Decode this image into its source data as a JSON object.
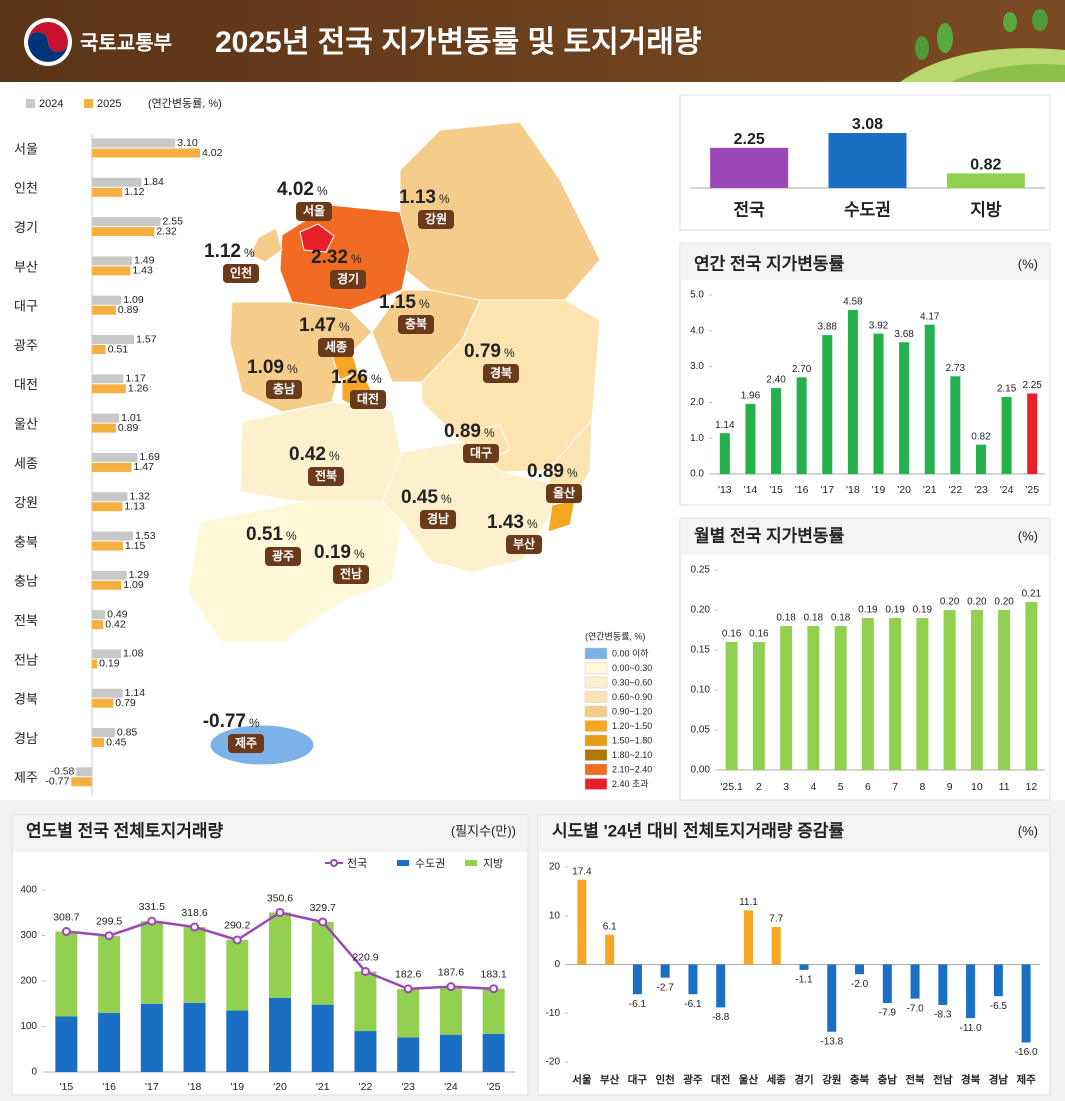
{
  "header": {
    "ministry": "국토교통부",
    "title": "2025년 전국 지가변동률 및 토지거래량"
  },
  "map": {
    "unit": "%",
    "legend_title": "(연간변동률, %)",
    "regions": [
      {
        "name": "서울",
        "value": "4.02",
        "color": "#e8202a"
      },
      {
        "name": "인천",
        "value": "1.12",
        "color": "#f5cc8a"
      },
      {
        "name": "경기",
        "value": "2.32",
        "color": "#f26b22"
      },
      {
        "name": "강원",
        "value": "1.13",
        "color": "#f5cc8a"
      },
      {
        "name": "충북",
        "value": "1.15",
        "color": "#f5cc8a"
      },
      {
        "name": "세종",
        "value": "1.47",
        "color": "#f5a623"
      },
      {
        "name": "충남",
        "value": "1.09",
        "color": "#f5cc8a"
      },
      {
        "name": "대전",
        "value": "1.26",
        "color": "#f5a623"
      },
      {
        "name": "경북",
        "value": "0.79",
        "color": "#fbe4b0"
      },
      {
        "name": "대구",
        "value": "0.89",
        "color": "#fbe4b0"
      },
      {
        "name": "전북",
        "value": "0.42",
        "color": "#fdf0cc"
      },
      {
        "name": "경남",
        "value": "0.45",
        "color": "#fdf0cc"
      },
      {
        "name": "울산",
        "value": "0.89",
        "color": "#fbe4b0"
      },
      {
        "name": "부산",
        "value": "1.43",
        "color": "#f5a623"
      },
      {
        "name": "광주",
        "value": "0.51",
        "color": "#fdf0cc"
      },
      {
        "name": "전남",
        "value": "0.19",
        "color": "#fff8d8"
      },
      {
        "name": "제주",
        "value": "-0.77",
        "color": "#7cb2e8"
      }
    ],
    "legend": [
      {
        "label": "0.00 이하",
        "color": "#7cb2e8"
      },
      {
        "label": "0.00~0.30",
        "color": "#fff8d8"
      },
      {
        "label": "0.30~0.60",
        "color": "#fdf0cc"
      },
      {
        "label": "0.60~0.90",
        "color": "#fbe4b0"
      },
      {
        "label": "0.90~1.20",
        "color": "#f5cc8a"
      },
      {
        "label": "1.20~1.50",
        "color": "#f5a623"
      },
      {
        "label": "1.50~1.80",
        "color": "#e89a10"
      },
      {
        "label": "1.80~2.10",
        "color": "#b07800"
      },
      {
        "label": "2.10~2.40",
        "color": "#f26b22"
      },
      {
        "label": "2.40 초과",
        "color": "#e8202a"
      }
    ]
  },
  "chart_data": [
    {
      "type": "hbar",
      "unit": "(연간변동률, %)",
      "categories": [
        "서울",
        "인천",
        "경기",
        "부산",
        "대구",
        "광주",
        "대전",
        "울산",
        "세종",
        "강원",
        "충북",
        "충남",
        "전북",
        "전남",
        "경북",
        "경남",
        "제주"
      ],
      "series": [
        {
          "name": "2024",
          "color": "#c8c8c8",
          "values": [
            3.1,
            1.84,
            2.55,
            1.49,
            1.09,
            1.57,
            1.17,
            1.01,
            1.69,
            1.32,
            1.53,
            1.29,
            0.49,
            1.08,
            1.14,
            0.85,
            -0.58
          ],
          "value_labels": [
            "3.10",
            "1.84",
            "2.55",
            "1.49",
            "1.09",
            "1.57",
            "1.17",
            "1.01",
            "1.69",
            "1.32",
            "1.53",
            "1.29",
            "0.49",
            "1.08",
            "1.14",
            "0.85",
            "-0.58"
          ]
        },
        {
          "name": "2025",
          "color": "#f5b041",
          "values": [
            4.02,
            1.12,
            2.32,
            1.43,
            0.89,
            0.51,
            1.26,
            0.89,
            1.47,
            1.13,
            1.15,
            1.09,
            0.42,
            0.19,
            0.79,
            0.45,
            -0.77
          ],
          "value_labels": [
            "4.02",
            "1.12",
            "2.32",
            "1.43",
            "0.89",
            "0.51",
            "1.26",
            "0.89",
            "1.47",
            "1.13",
            "1.15",
            "1.09",
            "0.42",
            "0.19",
            "0.79",
            "0.45",
            "-0.77"
          ]
        }
      ]
    },
    {
      "type": "bar",
      "categories": [
        "전국",
        "수도권",
        "지방"
      ],
      "values": [
        2.25,
        3.08,
        0.82
      ],
      "colors": [
        "#9b47b8",
        "#1a6fc4",
        "#8fd14f"
      ]
    },
    {
      "type": "bar",
      "title": "연간 전국 지가변동률",
      "unit": "(%)",
      "categories": [
        "'13",
        "'14",
        "'15",
        "'16",
        "'17",
        "'18",
        "'19",
        "'20",
        "'21",
        "'22",
        "'23",
        "'24",
        "'25"
      ],
      "values": [
        1.14,
        1.96,
        2.4,
        2.7,
        3.88,
        4.58,
        3.92,
        3.68,
        4.17,
        2.73,
        0.82,
        2.15,
        2.25
      ],
      "value_labels": [
        "1.14",
        "1.96",
        "2.40",
        "2.70",
        "3.88",
        "4.58",
        "3.92",
        "3.68",
        "4.17",
        "2.73",
        "0.82",
        "2.15",
        "2.25"
      ],
      "colors": [
        "#22b14c",
        "#22b14c",
        "#22b14c",
        "#22b14c",
        "#22b14c",
        "#22b14c",
        "#22b14c",
        "#22b14c",
        "#22b14c",
        "#22b14c",
        "#22b14c",
        "#22b14c",
        "#e8202a"
      ],
      "ylim": [
        0,
        5
      ],
      "yticks": [
        {
          "value": 0,
          "label": "0.0"
        },
        {
          "value": 1,
          "label": "1.0"
        },
        {
          "value": 2,
          "label": "2.0"
        },
        {
          "value": 3,
          "label": "3.0"
        },
        {
          "value": 4,
          "label": "4.0"
        },
        {
          "value": 5,
          "label": "5.0"
        }
      ]
    },
    {
      "type": "bar",
      "title": "월별 전국 지가변동률",
      "unit": "(%)",
      "categories": [
        "'25.1",
        "2",
        "3",
        "4",
        "5",
        "6",
        "7",
        "8",
        "9",
        "10",
        "11",
        "12"
      ],
      "values": [
        0.16,
        0.16,
        0.18,
        0.18,
        0.18,
        0.19,
        0.19,
        0.19,
        0.2,
        0.2,
        0.2,
        0.21
      ],
      "value_labels": [
        "0.16",
        "0.16",
        "0.18",
        "0.18",
        "0.18",
        "0.19",
        "0.19",
        "0.19",
        "0.20",
        "0.20",
        "0.20",
        "0.21"
      ],
      "color": "#92d050",
      "ylim": [
        0,
        0.25
      ],
      "yticks": [
        {
          "value": 0,
          "label": "0.00"
        },
        {
          "value": 0.05,
          "label": "0.05"
        },
        {
          "value": 0.1,
          "label": "0.10"
        },
        {
          "value": 0.15,
          "label": "0.15"
        },
        {
          "value": 0.2,
          "label": "0.20"
        },
        {
          "value": 0.25,
          "label": "0.25"
        }
      ]
    },
    {
      "type": "combo",
      "title": "연도별 전국 전체토지거래량",
      "unit": "(필지수(만))",
      "categories": [
        "'15",
        "'16",
        "'17",
        "'18",
        "'19",
        "'20",
        "'21",
        "'22",
        "'23",
        "'24",
        "'25"
      ],
      "series": [
        {
          "name": "전국",
          "kind": "line",
          "color": "#9b47b8",
          "values": [
            308.7,
            299.5,
            331.5,
            318.6,
            290.2,
            350.6,
            329.7,
            220.9,
            182.6,
            187.6,
            183.1
          ]
        },
        {
          "name": "수도권",
          "kind": "bar",
          "color": "#1a6fc4",
          "values": [
            122,
            130,
            150,
            152,
            135,
            163,
            148,
            90,
            76,
            82,
            84
          ]
        },
        {
          "name": "지방",
          "kind": "bar",
          "color": "#92d050",
          "values": [
            186.7,
            169.5,
            181.5,
            166.6,
            155.2,
            187.6,
            181.7,
            130.9,
            106.6,
            105.6,
            99.1
          ]
        }
      ],
      "ylim": [
        0,
        400
      ],
      "yticks": [
        0,
        100,
        200,
        300,
        400
      ]
    },
    {
      "type": "bar",
      "title": "시도별 '24년 대비 전체토지거래량 증감률",
      "unit": "(%)",
      "categories": [
        "서울",
        "부산",
        "대구",
        "인천",
        "광주",
        "대전",
        "울산",
        "세종",
        "경기",
        "강원",
        "충북",
        "충남",
        "전북",
        "전남",
        "경북",
        "경남",
        "제주"
      ],
      "values": [
        17.4,
        6.1,
        -6.1,
        -2.7,
        -6.1,
        -8.8,
        11.1,
        7.7,
        -1.1,
        -13.8,
        -2.0,
        -7.9,
        -7.0,
        -8.3,
        -11.0,
        -6.5,
        -16.0
      ],
      "value_labels": [
        "17.4",
        "6.1",
        "-6.1",
        "-2.7",
        "-6.1",
        "-8.8",
        "11.1",
        "7.7",
        "-1.1",
        "-13.8",
        "-2.0",
        "-7.9",
        "-7.0",
        "-8.3",
        "-11.0",
        "-6.5",
        "-16.0"
      ],
      "colors": [
        "#f5a623",
        "#f5a623",
        "#1a6fc4",
        "#1a6fc4",
        "#1a6fc4",
        "#1a6fc4",
        "#f5a623",
        "#f5a623",
        "#1a6fc4",
        "#1a6fc4",
        "#1a6fc4",
        "#1a6fc4",
        "#1a6fc4",
        "#1a6fc4",
        "#1a6fc4",
        "#1a6fc4",
        "#1a6fc4"
      ],
      "ylim": [
        -20,
        20
      ],
      "yticks": [
        -20,
        -10,
        0,
        10,
        20
      ]
    }
  ]
}
